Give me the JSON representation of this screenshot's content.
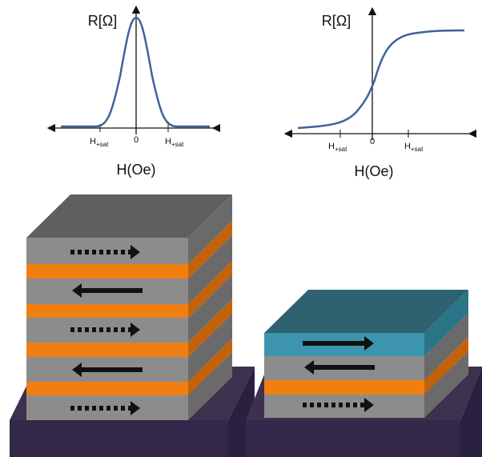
{
  "plots": [
    {
      "y_label": "R[Ω]",
      "x_label": "H(Oe)",
      "origin": "0",
      "tick_labels": [
        {
          "main": "H",
          "sub": "+sat"
        },
        {
          "main": "H",
          "sub": "+sat"
        }
      ]
    },
    {
      "y_label": "R[Ω]",
      "x_label": "H(Oe)",
      "origin": "0",
      "tick_labels": [
        {
          "main": "H",
          "sub": "+sat"
        },
        {
          "main": "H",
          "sub": "+sat"
        }
      ]
    }
  ]
}
